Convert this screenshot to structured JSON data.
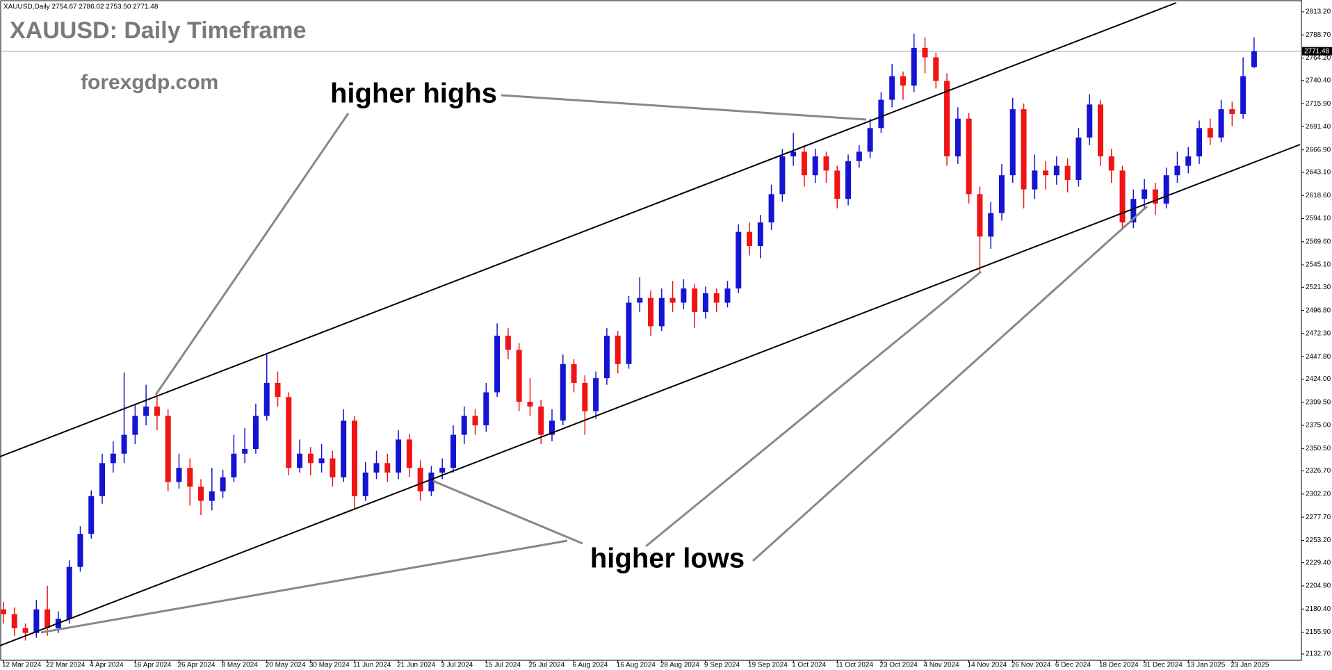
{
  "chart_data": {
    "type": "candlestick",
    "header": "XAUUSD,Daily  2754.67 2786.02 2753.50 2771.48",
    "title": "XAUUSD: Daily Timeframe",
    "watermark": "forexgdp.com",
    "annotations": [
      "higher highs",
      "higher lows"
    ],
    "up_color": "#1414d2",
    "down_color": "#f01414",
    "last_price": 2771.48,
    "ylim": [
      2132.7,
      2813.2
    ],
    "yticks": [
      {
        "value": 2813.2,
        "label": "2813.20"
      },
      {
        "value": 2788.7,
        "label": "2788.70"
      },
      {
        "value": 2764.2,
        "label": "2764.20"
      },
      {
        "value": 2740.4,
        "label": "2740.40"
      },
      {
        "value": 2715.9,
        "label": "2715.90"
      },
      {
        "value": 2691.4,
        "label": "2691.40"
      },
      {
        "value": 2666.9,
        "label": "2666.90"
      },
      {
        "value": 2643.1,
        "label": "2643.10"
      },
      {
        "value": 2618.6,
        "label": "2618.60"
      },
      {
        "value": 2594.1,
        "label": "2594.10"
      },
      {
        "value": 2569.6,
        "label": "2569.60"
      },
      {
        "value": 2545.1,
        "label": "2545.10"
      },
      {
        "value": 2521.3,
        "label": "2521.30"
      },
      {
        "value": 2496.8,
        "label": "2496.80"
      },
      {
        "value": 2472.3,
        "label": "2472.30"
      },
      {
        "value": 2447.8,
        "label": "2447.80"
      },
      {
        "value": 2424,
        "label": "2424.00"
      },
      {
        "value": 2399.5,
        "label": "2399.50"
      },
      {
        "value": 2375,
        "label": "2375.00"
      },
      {
        "value": 2350.5,
        "label": "2350.50"
      },
      {
        "value": 2326.7,
        "label": "2326.70"
      },
      {
        "value": 2302.2,
        "label": "2302.20"
      },
      {
        "value": 2277.7,
        "label": "2277.70"
      },
      {
        "value": 2253.2,
        "label": "2253.20"
      },
      {
        "value": 2229.4,
        "label": "2229.40"
      },
      {
        "value": 2204.9,
        "label": "2204.90"
      },
      {
        "value": 2180.4,
        "label": "2180.40"
      },
      {
        "value": 2155.9,
        "label": "2155.90"
      },
      {
        "value": 2132.7,
        "label": "2132.70"
      }
    ],
    "categories": [
      "12 Mar 2024",
      null,
      null,
      null,
      "22 Mar 2024",
      null,
      null,
      null,
      "4 Apr 2024",
      null,
      null,
      null,
      "16 Apr 2024",
      null,
      null,
      null,
      "26 Apr 2024",
      null,
      null,
      null,
      "8 May 2024",
      null,
      null,
      null,
      "20 May 2024",
      null,
      null,
      null,
      "30 May 2024",
      null,
      null,
      null,
      "11 Jun 2024",
      null,
      null,
      null,
      "21 Jun 2024",
      null,
      null,
      null,
      "3 Jul 2024",
      null,
      null,
      null,
      "15 Jul 2024",
      null,
      null,
      null,
      "25 Jul 2024",
      null,
      null,
      null,
      "6 Aug 2024",
      null,
      null,
      null,
      "16 Aug 2024",
      null,
      null,
      null,
      "28 Aug 2024",
      null,
      null,
      null,
      "9 Sep 2024",
      null,
      null,
      null,
      "19 Sep 2024",
      null,
      null,
      null,
      "1 Oct 2024",
      null,
      null,
      null,
      "11 Oct 2024",
      null,
      null,
      null,
      "23 Oct 2024",
      null,
      null,
      null,
      "4 Nov 2024",
      null,
      null,
      null,
      "14 Nov 2024",
      null,
      null,
      null,
      "26 Nov 2024",
      null,
      null,
      null,
      "6 Dec 2024",
      null,
      null,
      null,
      "18 Dec 2024",
      null,
      null,
      null,
      "31 Dec 2024",
      null,
      null,
      null,
      "13 Jan 2025",
      null,
      null,
      null,
      "23 Jan 2025",
      null,
      null
    ],
    "open": [
      2180,
      2175,
      2160,
      2155,
      2180,
      2160,
      2170,
      2225,
      2260,
      2300,
      2335,
      2345,
      2365,
      2385,
      2395,
      2385,
      2315,
      2330,
      2310,
      2295,
      2305,
      2320,
      2345,
      2350,
      2385,
      2420,
      2405,
      2330,
      2345,
      2335,
      2340,
      2320,
      2380,
      2300,
      2325,
      2335,
      2325,
      2360,
      2330,
      2305,
      2325,
      2330,
      2365,
      2385,
      2375,
      2410,
      2470,
      2455,
      2400,
      2395,
      2365,
      2380,
      2440,
      2420,
      2390,
      2425,
      2470,
      2440,
      2505,
      2510,
      2480,
      2510,
      2505,
      2520,
      2495,
      2515,
      2505,
      2520,
      2580,
      2565,
      2590,
      2620,
      2660,
      2665,
      2640,
      2660,
      2645,
      2615,
      2655,
      2665,
      2690,
      2720,
      2745,
      2735,
      2775,
      2765,
      2740,
      2660,
      2700,
      2620,
      2575,
      2600,
      2640,
      2710,
      2625,
      2645,
      2640,
      2650,
      2635,
      2680,
      2715,
      2660,
      2645,
      2590,
      2615,
      2625,
      2610,
      2640,
      2650,
      2660,
      2690,
      2680,
      2710,
      2705,
      2754.67
    ],
    "high": [
      2188,
      2182,
      2165,
      2190,
      2205,
      2178,
      2232,
      2268,
      2306,
      2345,
      2358,
      2431,
      2398,
      2418,
      2405,
      2392,
      2345,
      2340,
      2318,
      2330,
      2328,
      2365,
      2372,
      2398,
      2450,
      2432,
      2410,
      2360,
      2352,
      2355,
      2348,
      2392,
      2385,
      2336,
      2348,
      2345,
      2370,
      2366,
      2338,
      2332,
      2340,
      2375,
      2395,
      2392,
      2420,
      2483,
      2478,
      2462,
      2425,
      2402,
      2392,
      2450,
      2445,
      2428,
      2432,
      2478,
      2475,
      2512,
      2532,
      2518,
      2520,
      2528,
      2530,
      2525,
      2522,
      2520,
      2528,
      2588,
      2590,
      2598,
      2630,
      2668,
      2685,
      2672,
      2668,
      2665,
      2650,
      2662,
      2672,
      2700,
      2728,
      2758,
      2750,
      2790,
      2786,
      2770,
      2748,
      2712,
      2706,
      2628,
      2612,
      2652,
      2722,
      2716,
      2662,
      2655,
      2660,
      2658,
      2690,
      2726,
      2720,
      2668,
      2650,
      2625,
      2636,
      2632,
      2648,
      2665,
      2670,
      2698,
      2700,
      2720,
      2718,
      2765,
      2786.02
    ],
    "low": [
      2165,
      2152,
      2147,
      2150,
      2152,
      2155,
      2165,
      2220,
      2255,
      2292,
      2325,
      2335,
      2355,
      2375,
      2370,
      2305,
      2308,
      2290,
      2280,
      2285,
      2298,
      2315,
      2335,
      2345,
      2380,
      2395,
      2322,
      2325,
      2322,
      2325,
      2310,
      2315,
      2287,
      2295,
      2318,
      2315,
      2318,
      2320,
      2295,
      2300,
      2318,
      2325,
      2355,
      2365,
      2368,
      2405,
      2445,
      2390,
      2385,
      2355,
      2358,
      2375,
      2410,
      2365,
      2382,
      2418,
      2430,
      2435,
      2495,
      2470,
      2475,
      2495,
      2498,
      2478,
      2488,
      2495,
      2500,
      2515,
      2555,
      2552,
      2582,
      2612,
      2650,
      2628,
      2632,
      2632,
      2605,
      2608,
      2648,
      2658,
      2685,
      2712,
      2720,
      2728,
      2748,
      2732,
      2650,
      2652,
      2610,
      2537,
      2562,
      2592,
      2632,
      2605,
      2615,
      2625,
      2630,
      2622,
      2628,
      2672,
      2650,
      2632,
      2583,
      2584,
      2605,
      2598,
      2605,
      2632,
      2642,
      2652,
      2672,
      2675,
      2692,
      2700,
      2753.5
    ],
    "close": [
      2175,
      2160,
      2155,
      2180,
      2160,
      2170,
      2225,
      2260,
      2300,
      2335,
      2345,
      2365,
      2385,
      2395,
      2385,
      2315,
      2330,
      2310,
      2295,
      2305,
      2320,
      2345,
      2350,
      2385,
      2420,
      2405,
      2330,
      2345,
      2335,
      2340,
      2320,
      2380,
      2300,
      2325,
      2335,
      2325,
      2360,
      2330,
      2305,
      2325,
      2330,
      2365,
      2385,
      2375,
      2410,
      2470,
      2455,
      2400,
      2395,
      2365,
      2380,
      2440,
      2420,
      2390,
      2425,
      2470,
      2440,
      2505,
      2510,
      2480,
      2510,
      2505,
      2520,
      2495,
      2515,
      2505,
      2520,
      2580,
      2565,
      2590,
      2620,
      2660,
      2665,
      2640,
      2660,
      2645,
      2615,
      2655,
      2665,
      2690,
      2720,
      2745,
      2735,
      2775,
      2765,
      2740,
      2660,
      2700,
      2620,
      2575,
      2600,
      2640,
      2710,
      2625,
      2645,
      2640,
      2650,
      2635,
      2680,
      2715,
      2660,
      2645,
      2590,
      2615,
      2625,
      2610,
      2640,
      2650,
      2660,
      2690,
      2680,
      2710,
      2705,
      2745,
      2771.48
    ]
  }
}
